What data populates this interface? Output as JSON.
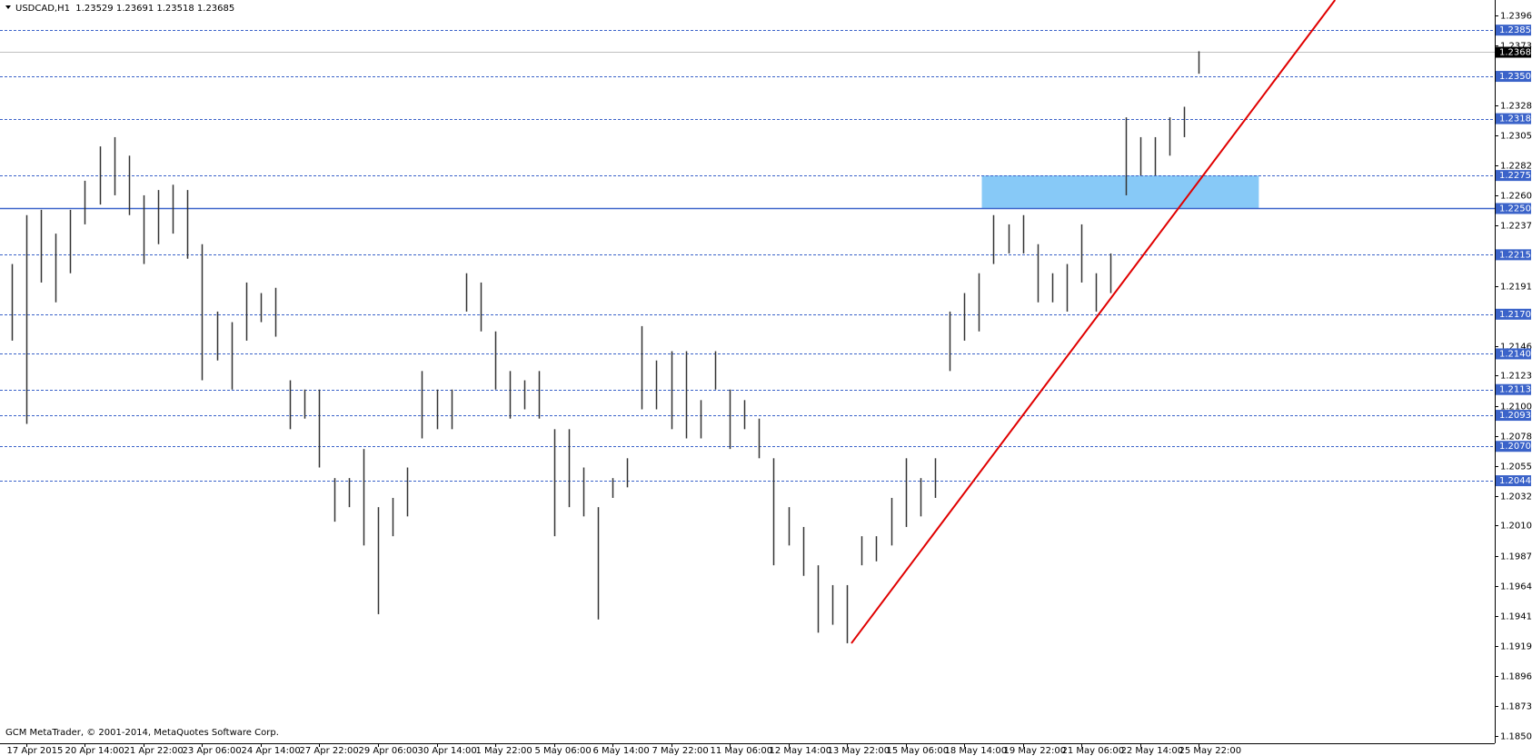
{
  "chart_data": {
    "type": "ohlc",
    "title": "USDCAD,H1  1.23529 1.23691 1.23518 1.23685",
    "footer": "GCM MetaTrader, © 2001-2014, MetaQuotes Software Corp.",
    "categories": [
      null,
      "17 Apr 2015",
      null,
      null,
      null,
      "20 Apr 14:00",
      null,
      null,
      null,
      "21 Apr 22:00",
      null,
      null,
      null,
      "23 Apr 06:00",
      null,
      null,
      null,
      "24 Apr 14:00",
      null,
      null,
      null,
      "27 Apr 22:00",
      null,
      null,
      null,
      "29 Apr 06:00",
      null,
      null,
      null,
      "30 Apr 14:00",
      null,
      null,
      null,
      "1 May 22:00",
      null,
      null,
      null,
      "5 May 06:00",
      null,
      null,
      null,
      "6 May 14:00",
      null,
      null,
      null,
      "7 May 22:00",
      null,
      null,
      null,
      "11 May 06:00",
      null,
      null,
      null,
      "12 May 14:00",
      null,
      null,
      null,
      "13 May 22:00",
      null,
      null,
      null,
      "15 May 06:00",
      null,
      null,
      null,
      "18 May 14:00",
      null,
      null,
      null,
      "19 May 22:00",
      null,
      null,
      null,
      "21 May 06:00",
      null,
      null,
      null,
      "22 May 14:00",
      null,
      null,
      null,
      "25 May 22:00"
    ],
    "series": [
      {
        "name": "high",
        "color": "#333333",
        "values": [
          1.2208,
          1.2245,
          1.2249,
          1.2231,
          1.2249,
          1.2271,
          1.2297,
          1.2304,
          1.229,
          1.226,
          1.2264,
          1.2268,
          1.2264,
          1.2223,
          1.2172,
          1.2164,
          1.2194,
          1.2186,
          1.219,
          1.212,
          1.2113,
          1.2113,
          1.2046,
          1.2046,
          1.2068,
          1.2024,
          1.2031,
          1.2054,
          1.2127,
          1.2113,
          1.2113,
          1.2201,
          1.2194,
          1.2157,
          1.2127,
          1.212,
          1.2127,
          1.2083,
          1.2083,
          1.2054,
          1.2024,
          1.2046,
          1.2061,
          1.2161,
          1.2135,
          1.2142,
          1.2142,
          1.2105,
          1.2142,
          1.2113,
          1.2105,
          1.2091,
          1.2061,
          1.2024,
          1.2009,
          1.198,
          1.1965,
          1.1965,
          1.2002,
          1.2002,
          1.2031,
          1.2061,
          1.2046,
          1.2061,
          1.2172,
          1.2186,
          1.2201,
          1.2245,
          1.2238,
          1.2245,
          1.2223,
          1.2201,
          1.2208,
          1.2238,
          1.2201,
          1.2216,
          1.2319,
          1.2304,
          1.2304,
          1.2319,
          1.2327,
          1.2369
        ]
      },
      {
        "name": "low",
        "color": "#333333",
        "values": [
          1.215,
          1.2087,
          1.2194,
          1.2179,
          1.2201,
          1.2238,
          1.2253,
          1.226,
          1.2245,
          1.2208,
          1.2223,
          1.2231,
          1.2212,
          1.212,
          1.2135,
          1.2113,
          1.215,
          1.2164,
          1.2153,
          1.2083,
          1.2091,
          1.2054,
          1.2013,
          1.2024,
          1.1995,
          1.1943,
          1.2002,
          1.2017,
          1.2076,
          1.2083,
          1.2083,
          1.2172,
          1.2157,
          1.2113,
          1.2091,
          1.2098,
          1.2091,
          1.2002,
          1.2024,
          1.2017,
          1.1939,
          1.2031,
          1.2039,
          1.2098,
          1.2098,
          1.2083,
          1.2076,
          1.2076,
          1.2113,
          1.2068,
          1.2083,
          1.2061,
          1.198,
          1.1995,
          1.1972,
          1.1929,
          1.1935,
          1.1921,
          1.198,
          1.1983,
          1.1995,
          1.2009,
          1.2017,
          1.2031,
          1.2127,
          1.215,
          1.2157,
          1.2208,
          1.2216,
          1.2216,
          1.2179,
          1.2179,
          1.2172,
          1.2194,
          1.2172,
          1.2186,
          1.226,
          1.2275,
          1.2275,
          1.229,
          1.2304,
          1.2352
        ]
      }
    ],
    "ylim": [
      1.18453,
      1.24078
    ],
    "yticks": [
      {
        "value": 1.2396,
        "label": "1.23960"
      },
      {
        "value": 1.23735,
        "label": "1.23735"
      },
      {
        "value": 1.2328,
        "label": "1.23280"
      },
      {
        "value": 1.23055,
        "label": "1.23055"
      },
      {
        "value": 1.22825,
        "label": "1.22825"
      },
      {
        "value": 1.226,
        "label": "1.22600"
      },
      {
        "value": 1.2237,
        "label": "1.22370"
      },
      {
        "value": 1.21915,
        "label": "1.21915"
      },
      {
        "value": 1.2146,
        "label": "1.21460"
      },
      {
        "value": 1.21235,
        "label": "1.21235"
      },
      {
        "value": 1.21005,
        "label": "1.21005"
      },
      {
        "value": 1.2078,
        "label": "1.20780"
      },
      {
        "value": 1.2055,
        "label": "1.20550"
      },
      {
        "value": 1.20325,
        "label": "1.20325"
      },
      {
        "value": 1.201,
        "label": "1.20100"
      },
      {
        "value": 1.1987,
        "label": "1.19870"
      },
      {
        "value": 1.19645,
        "label": "1.19645"
      },
      {
        "value": 1.19415,
        "label": "1.19415"
      },
      {
        "value": 1.1919,
        "label": "1.19190"
      },
      {
        "value": 1.1896,
        "label": "1.18960"
      },
      {
        "value": 1.18735,
        "label": "1.18735"
      },
      {
        "value": 1.18505,
        "label": "1.18505"
      }
    ],
    "levels": [
      {
        "value": 1.2385,
        "label": "1.23850",
        "style": "dashed"
      },
      {
        "value": 1.235,
        "label": "1.23500",
        "style": "dashed"
      },
      {
        "value": 1.2318,
        "label": "1.23180",
        "style": "dashed"
      },
      {
        "value": 1.2275,
        "label": "1.22750",
        "style": "dashed"
      },
      {
        "value": 1.225,
        "label": "1.22500",
        "style": "solid"
      },
      {
        "value": 1.2215,
        "label": "1.22150",
        "style": "dashed"
      },
      {
        "value": 1.217,
        "label": "1.21700",
        "style": "dashed"
      },
      {
        "value": 1.214,
        "label": "1.21400",
        "style": "dashed"
      },
      {
        "value": 1.2113,
        "label": "1.21130",
        "style": "dashed"
      },
      {
        "value": 1.20935,
        "label": "1.20935",
        "style": "dashed"
      },
      {
        "value": 1.207,
        "label": "1.20700",
        "style": "dashed"
      },
      {
        "value": 1.2044,
        "label": "1.20440",
        "style": "dashed"
      }
    ],
    "level_color": "#3b63c9",
    "current_price": {
      "value": 1.23685,
      "label": "1.23685"
    },
    "trendline": {
      "color": "#e00000",
      "x": [
        57.3,
        90.3
      ],
      "y": [
        1.1921,
        1.24078
      ]
    },
    "zone": {
      "color": "#87c9f7",
      "x": [
        66.2,
        85.1
      ],
      "y": [
        1.225,
        1.2275
      ]
    }
  }
}
